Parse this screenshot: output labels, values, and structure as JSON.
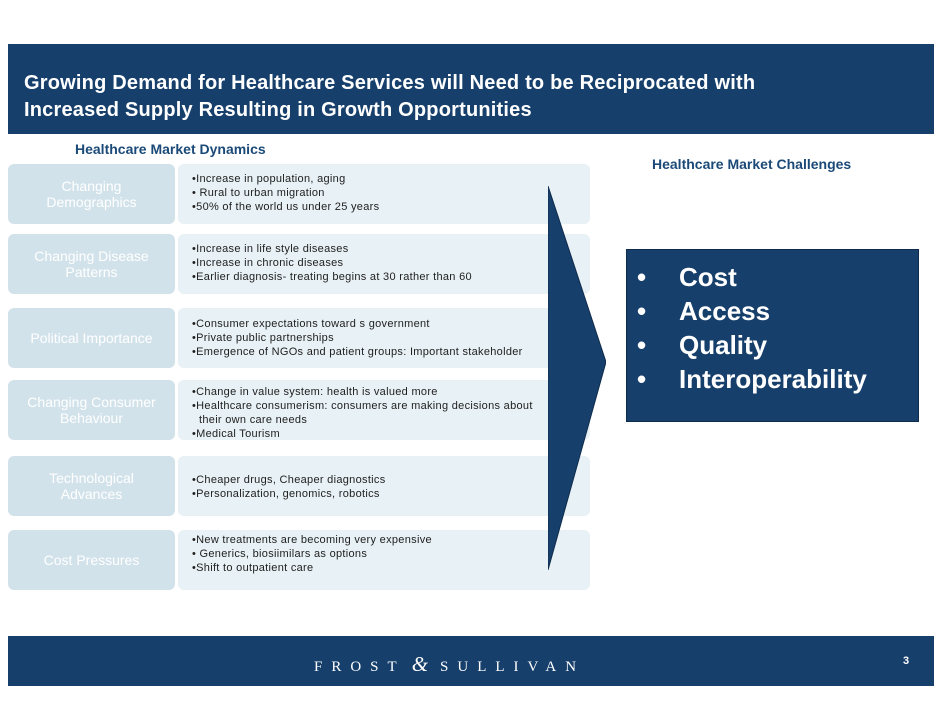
{
  "slide": {
    "title_line1": "Growing Demand for Healthcare Services will Need to be Reciprocated with",
    "title_line2": "Increased Supply Resulting in Growth Opportunities",
    "dynamics_title": "Healthcare Market Dynamics",
    "challenges_title": "Healthcare Market Challenges",
    "rows": [
      {
        "label_lines": [
          "Changing",
          "Demographics"
        ],
        "bullets": [
          "•Increase in population, aging",
          "• Rural to urban migration",
          "•50% of the world us under 25 years"
        ]
      },
      {
        "label_lines": [
          "Changing Disease",
          "Patterns"
        ],
        "bullets": [
          "•Increase in life style diseases",
          "•Increase in chronic diseases",
          "•Earlier diagnosis- treating begins at 30 rather than 60"
        ]
      },
      {
        "label_lines": [
          "Political Importance"
        ],
        "bullets": [
          "•Consumer expectations toward s government",
          "•Private public partnerships",
          "•Emergence of NGOs and patient groups: Important stakeholder"
        ]
      },
      {
        "label_lines": [
          "Changing Consumer",
          "Behaviour"
        ],
        "bullets": [
          "•Change in value system: health is valued more",
          "•Healthcare consumerism: consumers are making decisions about",
          "their own care needs",
          "•Medical Tourism"
        ]
      },
      {
        "label_lines": [
          "Technological",
          "Advances"
        ],
        "bullets": [
          "•Cheaper drugs, Cheaper diagnostics",
          "•Personalization, genomics, robotics"
        ]
      },
      {
        "label_lines": [
          "Cost Pressures"
        ],
        "bullets": [
          "•New treatments are becoming very expensive",
          "• Generics, biosiimilars as options",
          "•Shift to outpatient care"
        ]
      }
    ],
    "challenges": [
      {
        "bullet": "•",
        "text": "Cost"
      },
      {
        "bullet": "•",
        "text": "Access"
      },
      {
        "bullet": "•",
        "text": "Quality"
      },
      {
        "bullet": "•",
        "text": "Interoperability"
      }
    ],
    "footer": {
      "logo_left": "FROST",
      "logo_amp": "&",
      "logo_right": "SULLIVAN",
      "page_number": "3"
    },
    "colors": {
      "brand_navy": "#173f6b",
      "label_box": "#d2e2ea",
      "bullet_box": "#e8f1f5",
      "heading_blue": "#1b4a78"
    }
  }
}
